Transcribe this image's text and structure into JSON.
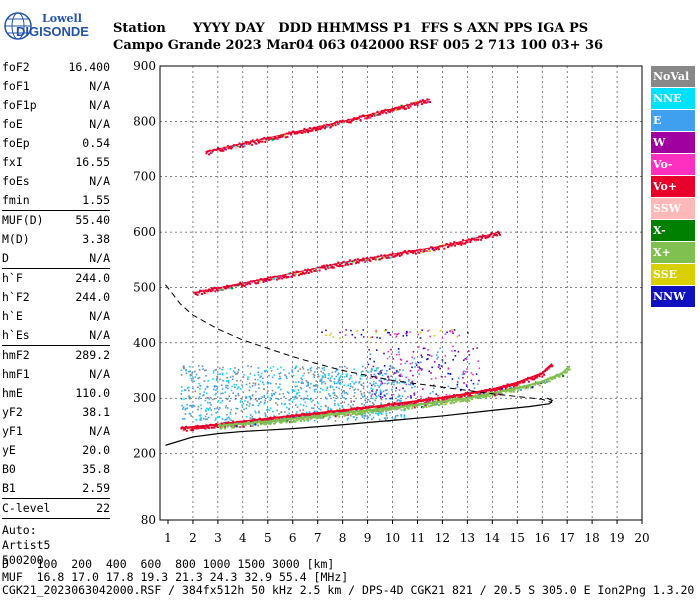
{
  "logo": {
    "line1": "Lowell",
    "line2": "DIGISONDE"
  },
  "header": {
    "line1": "Station      YYYY DAY   DDD HHMMSS P1  FFS S AXN PPS IGA PS",
    "line2": "Campo Grande 2023 Mar04 063 042000 RSF 005 2 713 100 03+ 36"
  },
  "params": {
    "group1": [
      {
        "k": "foF2",
        "v": "16.400"
      },
      {
        "k": "foF1",
        "v": "N/A"
      },
      {
        "k": "foF1p",
        "v": "N/A"
      },
      {
        "k": "foE",
        "v": "N/A"
      },
      {
        "k": "foEp",
        "v": "0.54"
      },
      {
        "k": "fxI",
        "v": "16.55"
      },
      {
        "k": "foEs",
        "v": "N/A"
      },
      {
        "k": "fmin",
        "v": "1.55"
      }
    ],
    "group2": [
      {
        "k": "MUF(D)",
        "v": "55.40"
      },
      {
        "k": "M(D)",
        "v": "3.38"
      },
      {
        "k": "D",
        "v": "N/A"
      }
    ],
    "group3": [
      {
        "k": "h`F",
        "v": "244.0"
      },
      {
        "k": "h`F2",
        "v": "244.0"
      },
      {
        "k": "h`E",
        "v": "N/A"
      },
      {
        "k": "h`Es",
        "v": "N/A"
      }
    ],
    "group4": [
      {
        "k": "hmF2",
        "v": "289.2"
      },
      {
        "k": "hmF1",
        "v": "N/A"
      },
      {
        "k": "hmE",
        "v": "110.0"
      },
      {
        "k": "yF2",
        "v": "38.1"
      },
      {
        "k": "yF1",
        "v": "N/A"
      },
      {
        "k": "yE",
        "v": "20.0"
      },
      {
        "k": "B0",
        "v": "35.8"
      },
      {
        "k": "B1",
        "v": "2.59"
      }
    ],
    "group5": [
      {
        "k": "C-level",
        "v": "22"
      }
    ],
    "auto": [
      "Auto:",
      "Artist5",
      "500200"
    ]
  },
  "legend": [
    {
      "label": "NoVal",
      "bg": "#888888",
      "fg": "#ffffff"
    },
    {
      "label": "NNE",
      "bg": "#00e0ff",
      "fg": "#ffffff"
    },
    {
      "label": "E",
      "bg": "#3fa0f0",
      "fg": "#ffffff"
    },
    {
      "label": "W",
      "bg": "#a000a0",
      "fg": "#ffffff"
    },
    {
      "label": "Vo-",
      "bg": "#ff30c0",
      "fg": "#ffffff"
    },
    {
      "label": "Vo+",
      "bg": "#e8002a",
      "fg": "#ffffff"
    },
    {
      "label": "SSW",
      "bg": "#ffb8b8",
      "fg": "#ffffff"
    },
    {
      "label": "X-",
      "bg": "#008000",
      "fg": "#ffffff"
    },
    {
      "label": "X+",
      "bg": "#80c050",
      "fg": "#ffffff"
    },
    {
      "label": "SSE",
      "bg": "#d8d000",
      "fg": "#ffffff"
    },
    {
      "label": "NNW",
      "bg": "#1010c0",
      "fg": "#ffffff"
    }
  ],
  "bottom": {
    "line1": "D    100  200  400  600  800 1000 1500 3000 [km]",
    "line2": "MUF  16.8 17.0 17.8 19.3 21.3 24.3 32.9 55.4 [MHz]",
    "line3": "CGK21_2023063042000.RSF / 384fx512h 50 kHz 2.5 km / DPS-4D CGK21 821 / 20.5 S 305.0 E Ion2Png 1.3.20"
  },
  "chart_data": {
    "type": "scatter",
    "xlim": [
      1,
      20
    ],
    "ylim": [
      80,
      900
    ],
    "xticks": [
      1,
      2,
      3,
      4,
      5,
      6,
      7,
      8,
      9,
      10,
      11,
      12,
      13,
      14,
      15,
      16,
      17,
      18,
      19,
      20
    ],
    "yticks": [
      80,
      200,
      300,
      400,
      500,
      600,
      700,
      800,
      900
    ],
    "grid": "dashed vertical and horizontal",
    "traces": [
      {
        "name": "F2 O-trace",
        "color": "#e8002a",
        "x": [
          1.5,
          2,
          3,
          4,
          5,
          6,
          7,
          8,
          9,
          10,
          11,
          12,
          13,
          14,
          15,
          16,
          16.4
        ],
        "y": [
          246,
          248,
          252,
          258,
          263,
          268,
          273,
          278,
          283,
          289,
          295,
          301,
          308,
          316,
          328,
          345,
          362
        ]
      },
      {
        "name": "F2 X-trace",
        "color": "#80c050",
        "x": [
          3,
          5,
          7,
          9,
          11,
          13,
          15,
          16,
          16.8,
          17.1
        ],
        "y": [
          250,
          258,
          268,
          278,
          288,
          300,
          318,
          330,
          345,
          358
        ]
      },
      {
        "name": "2F multiple",
        "color": "#e8002a",
        "x": [
          2,
          4,
          6,
          8,
          10,
          12,
          14.3
        ],
        "y": [
          490,
          508,
          526,
          545,
          560,
          575,
          600
        ]
      },
      {
        "name": "3F multiple",
        "color": "#e8002a",
        "x": [
          2.5,
          5,
          8,
          11.5
        ],
        "y": [
          745,
          770,
          800,
          840
        ]
      }
    ],
    "profile": {
      "x": [
        0.9,
        2,
        3,
        4,
        6,
        8,
        10,
        12,
        14,
        15.5,
        16.3,
        16.4,
        16.2
      ],
      "y": [
        215,
        230,
        236,
        240,
        245,
        252,
        260,
        268,
        278,
        285,
        290,
        296,
        300
      ]
    },
    "muf_curve": {
      "x": [
        0.9,
        1.5,
        2,
        3,
        4,
        5,
        6,
        7,
        8,
        10,
        12,
        14,
        16,
        16.4
      ],
      "y": [
        505,
        470,
        450,
        425,
        405,
        390,
        375,
        362,
        350,
        332,
        320,
        308,
        298,
        292
      ]
    }
  }
}
